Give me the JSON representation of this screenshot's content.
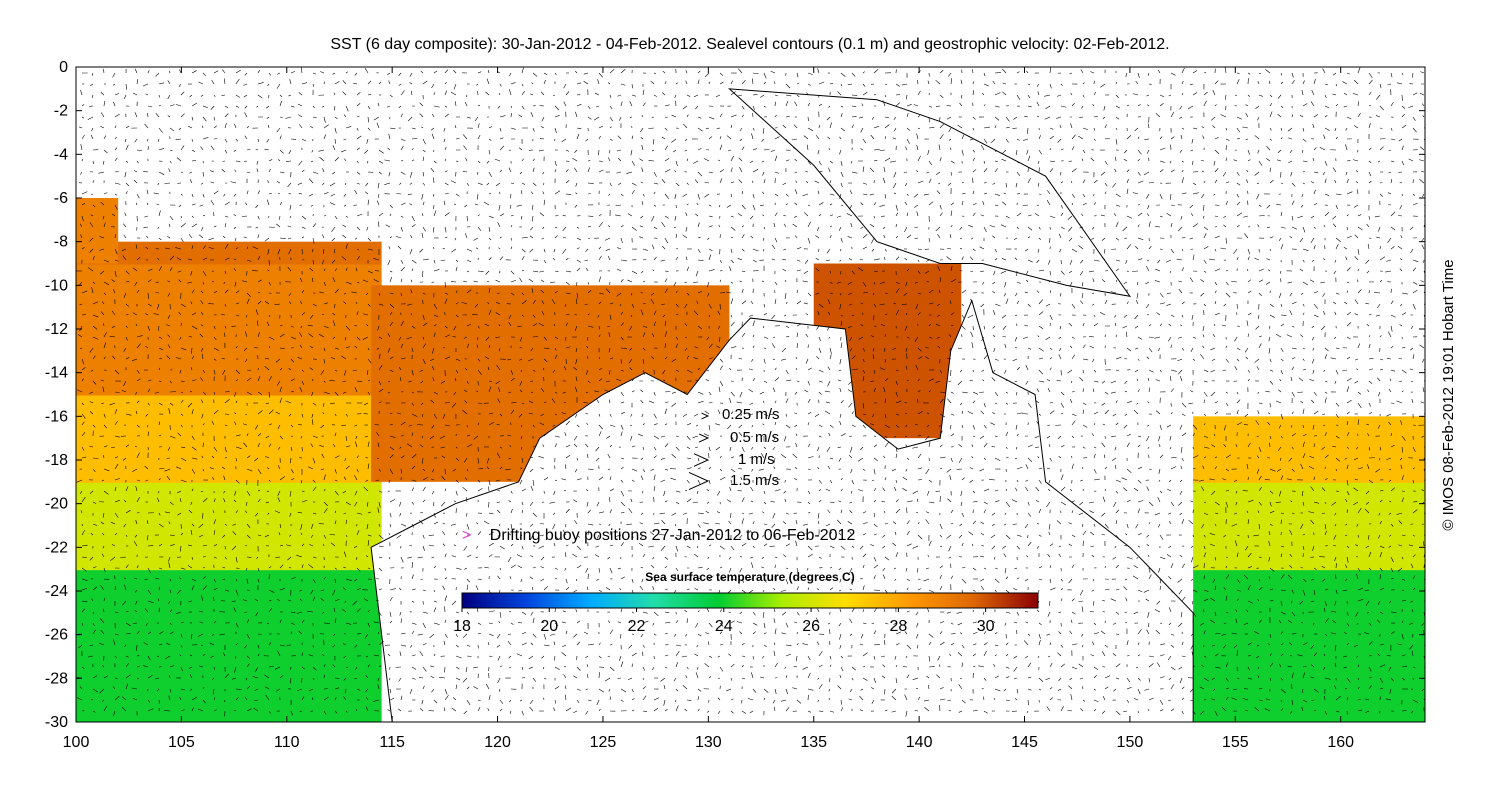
{
  "title": "SST (6 day composite): 30-Jan-2012 - 04-Feb-2012. Sealevel contours (0.1 m) and geostrophic velocity: 02-Feb-2012.",
  "x_axis": {
    "ticks": [
      "100",
      "105",
      "110",
      "115",
      "120",
      "125",
      "130",
      "135",
      "140",
      "145",
      "150",
      "155",
      "160"
    ],
    "range": [
      100,
      164
    ]
  },
  "y_axis": {
    "ticks": [
      "0",
      "-2",
      "-4",
      "-6",
      "-8",
      "-10",
      "-12",
      "-14",
      "-16",
      "-18",
      "-20",
      "-22",
      "-24",
      "-26",
      "-28",
      "-30"
    ],
    "range": [
      -30,
      0
    ]
  },
  "velocity_legend": [
    {
      "label": "0.25 m/s",
      "speed": 0.25
    },
    {
      "label": "0.5 m/s",
      "speed": 0.5
    },
    {
      "label": "1 m/s",
      "speed": 1
    },
    {
      "label": "1.5 m/s",
      "speed": 1.5
    }
  ],
  "buoy_legend": {
    "symbol": ">",
    "label": "Drifting buoy positions 27-Jan-2012 to 06-Feb-2012",
    "color": "#e040e0"
  },
  "colorbar": {
    "title": "Sea surface temperature (degrees C)",
    "range": [
      18,
      31.2
    ],
    "ticks": [
      "18",
      "20",
      "22",
      "24",
      "26",
      "28",
      "30"
    ],
    "colors": [
      "#000080",
      "#0044dd",
      "#00aaff",
      "#22ddaa",
      "#00cc33",
      "#aaee00",
      "#ffdd00",
      "#ff9900",
      "#dd6600",
      "#8b0000"
    ]
  },
  "credit": "© IMOS 08-Feb-2012 19:01 Hobart Time"
}
